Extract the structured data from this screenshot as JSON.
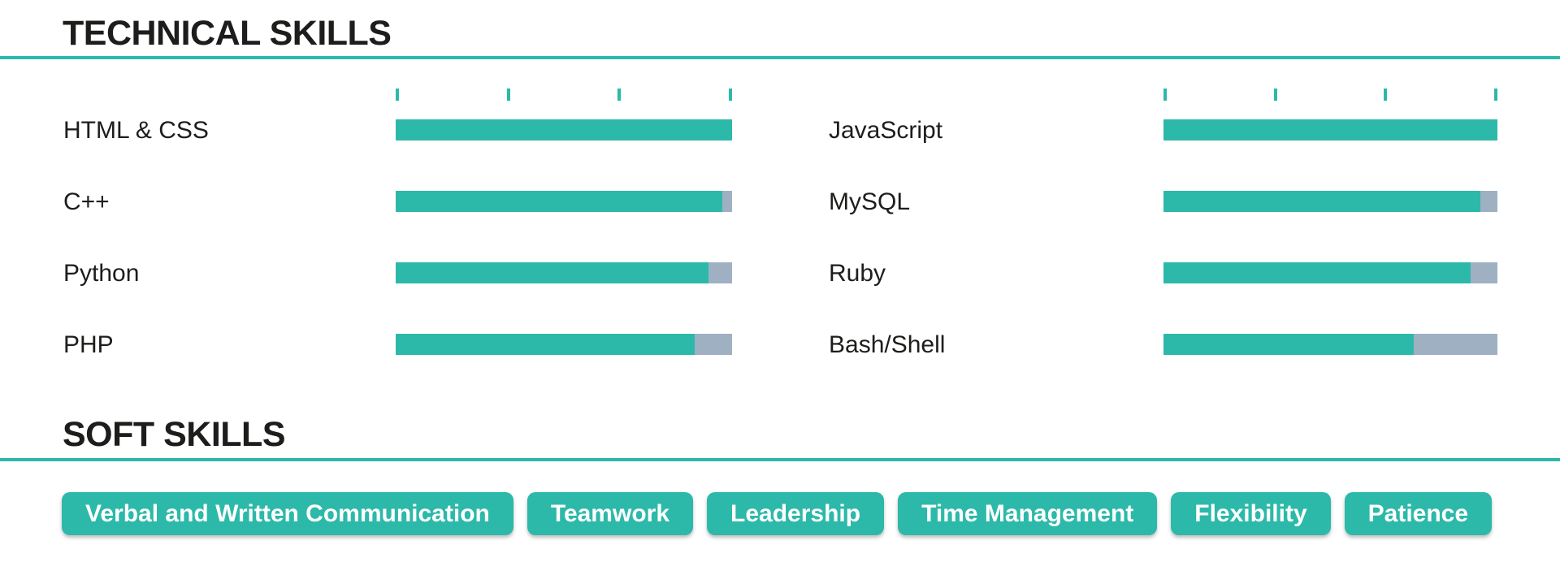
{
  "colors": {
    "teal": "#2cb9a9",
    "gray": "#9fb0c3",
    "text": "#1d1d1b",
    "background": "#ffffff",
    "tag_text": "#ffffff"
  },
  "sections": {
    "technical": {
      "title": "TECHNICAL SKILLS",
      "scale_ticks_per_bar": 4,
      "columns": [
        {
          "skills": [
            {
              "name": "HTML & CSS",
              "percent": 100
            },
            {
              "name": "C++",
              "percent": 97
            },
            {
              "name": "Python",
              "percent": 93
            },
            {
              "name": "PHP",
              "percent": 89
            }
          ]
        },
        {
          "skills": [
            {
              "name": "JavaScript",
              "percent": 100
            },
            {
              "name": "MySQL",
              "percent": 95
            },
            {
              "name": "Ruby",
              "percent": 92
            },
            {
              "name": "Bash/Shell",
              "percent": 75
            }
          ]
        }
      ]
    },
    "soft": {
      "title": "SOFT SKILLS",
      "tags": [
        "Verbal and Written Communication",
        "Teamwork",
        "Leadership",
        "Time Management",
        "Flexibility",
        "Patience"
      ]
    }
  }
}
